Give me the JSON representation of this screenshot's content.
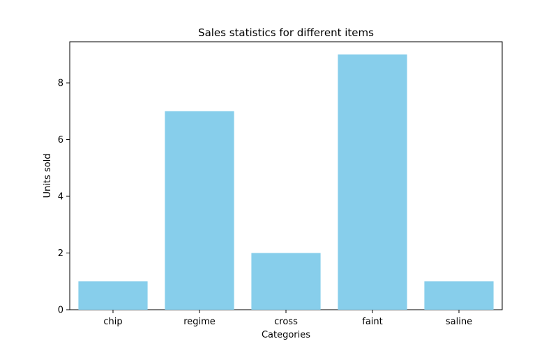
{
  "chart_data": {
    "type": "bar",
    "title": "Sales statistics for different items",
    "xlabel": "Categories",
    "ylabel": "Units sold",
    "categories": [
      "chip",
      "regime",
      "cross",
      "faint",
      "saline"
    ],
    "values": [
      1,
      7,
      2,
      9,
      1
    ],
    "ylim": [
      0,
      9.45
    ],
    "yticks": [
      0,
      2,
      4,
      6,
      8
    ],
    "grid": false,
    "bar_color": "#87CEEB"
  }
}
